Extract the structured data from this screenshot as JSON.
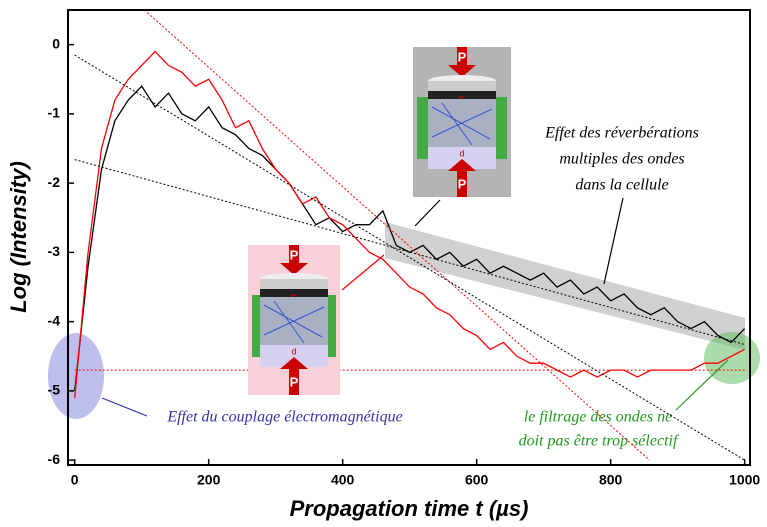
{
  "chart_data": {
    "type": "line",
    "x_label": "Propagation time t (µs)",
    "y_label": "Log (Intensity)",
    "xlim": [
      -10,
      1008
    ],
    "ylim": [
      -6.07,
      0.5
    ],
    "xticks": [
      0,
      200,
      400,
      600,
      800,
      1000
    ],
    "yticks": [
      0,
      -1,
      -2,
      -3,
      -4,
      -5,
      -6
    ],
    "x": [
      0,
      20,
      40,
      60,
      80,
      100,
      120,
      140,
      160,
      180,
      200,
      220,
      240,
      260,
      280,
      300,
      320,
      340,
      360,
      380,
      400,
      420,
      440,
      460,
      480,
      500,
      520,
      540,
      560,
      580,
      600,
      620,
      640,
      660,
      680,
      700,
      720,
      740,
      760,
      780,
      800,
      820,
      840,
      860,
      880,
      900,
      920,
      940,
      960,
      980,
      1000
    ],
    "series": [
      {
        "color": "#000000",
        "values": [
          -5.0,
          -3.2,
          -1.8,
          -1.1,
          -0.8,
          -0.6,
          -0.9,
          -0.7,
          -1.0,
          -1.1,
          -0.9,
          -1.2,
          -1.3,
          -1.5,
          -1.6,
          -1.8,
          -2.0,
          -2.3,
          -2.6,
          -2.5,
          -2.7,
          -2.6,
          -2.6,
          -2.4,
          -2.9,
          -3.0,
          -2.9,
          -3.1,
          -3.0,
          -3.2,
          -3.1,
          -3.3,
          -3.2,
          -3.3,
          -3.4,
          -3.3,
          -3.5,
          -3.4,
          -3.6,
          -3.5,
          -3.7,
          -3.6,
          -3.8,
          -3.9,
          -3.8,
          -4.0,
          -4.1,
          -4.0,
          -4.2,
          -4.3,
          -4.1
        ]
      },
      {
        "color": "#ff0000",
        "values": [
          -5.1,
          -3.0,
          -1.5,
          -0.8,
          -0.5,
          -0.3,
          -0.1,
          -0.3,
          -0.4,
          -0.6,
          -0.5,
          -0.8,
          -1.2,
          -1.1,
          -1.5,
          -1.8,
          -2.0,
          -2.3,
          -2.2,
          -2.5,
          -2.6,
          -2.8,
          -3.0,
          -3.1,
          -3.3,
          -3.5,
          -3.6,
          -3.8,
          -3.9,
          -4.1,
          -4.2,
          -4.4,
          -4.3,
          -4.5,
          -4.6,
          -4.6,
          -4.7,
          -4.8,
          -4.7,
          -4.8,
          -4.7,
          -4.7,
          -4.8,
          -4.7,
          -4.7,
          -4.7,
          -4.7,
          -4.6,
          -4.6,
          -4.5,
          -4.4
        ]
      }
    ],
    "fit_lines": [
      {
        "color": "#ff0000",
        "x": [
          104,
          858
        ],
        "values": [
          0.5,
          -6
        ]
      },
      {
        "color": "#ff0000",
        "x": [
          0,
          1000
        ],
        "values": [
          -4.7,
          -4.7
        ]
      },
      {
        "color": "#000000",
        "x": [
          0,
          1000
        ],
        "values": [
          -0.15,
          -6
        ]
      },
      {
        "color": "#000000",
        "x": [
          0,
          1000
        ],
        "values": [
          -1.66,
          -4.33
        ]
      }
    ],
    "annotations": {
      "reverberation": [
        "Effet des réverbérations",
        "multiples des ondes",
        "dans la cellule"
      ],
      "coupling": "Effet du couplage électromagnétique",
      "filtering": [
        "le filtrage des ondes ne",
        "doit pas être trop sélectif"
      ]
    },
    "insets": [
      {
        "top": "P",
        "middle": "E",
        "gap": "d",
        "bottom": "P"
      },
      {
        "top": "P",
        "middle": "E",
        "gap": "d",
        "bottom": "P"
      }
    ]
  }
}
